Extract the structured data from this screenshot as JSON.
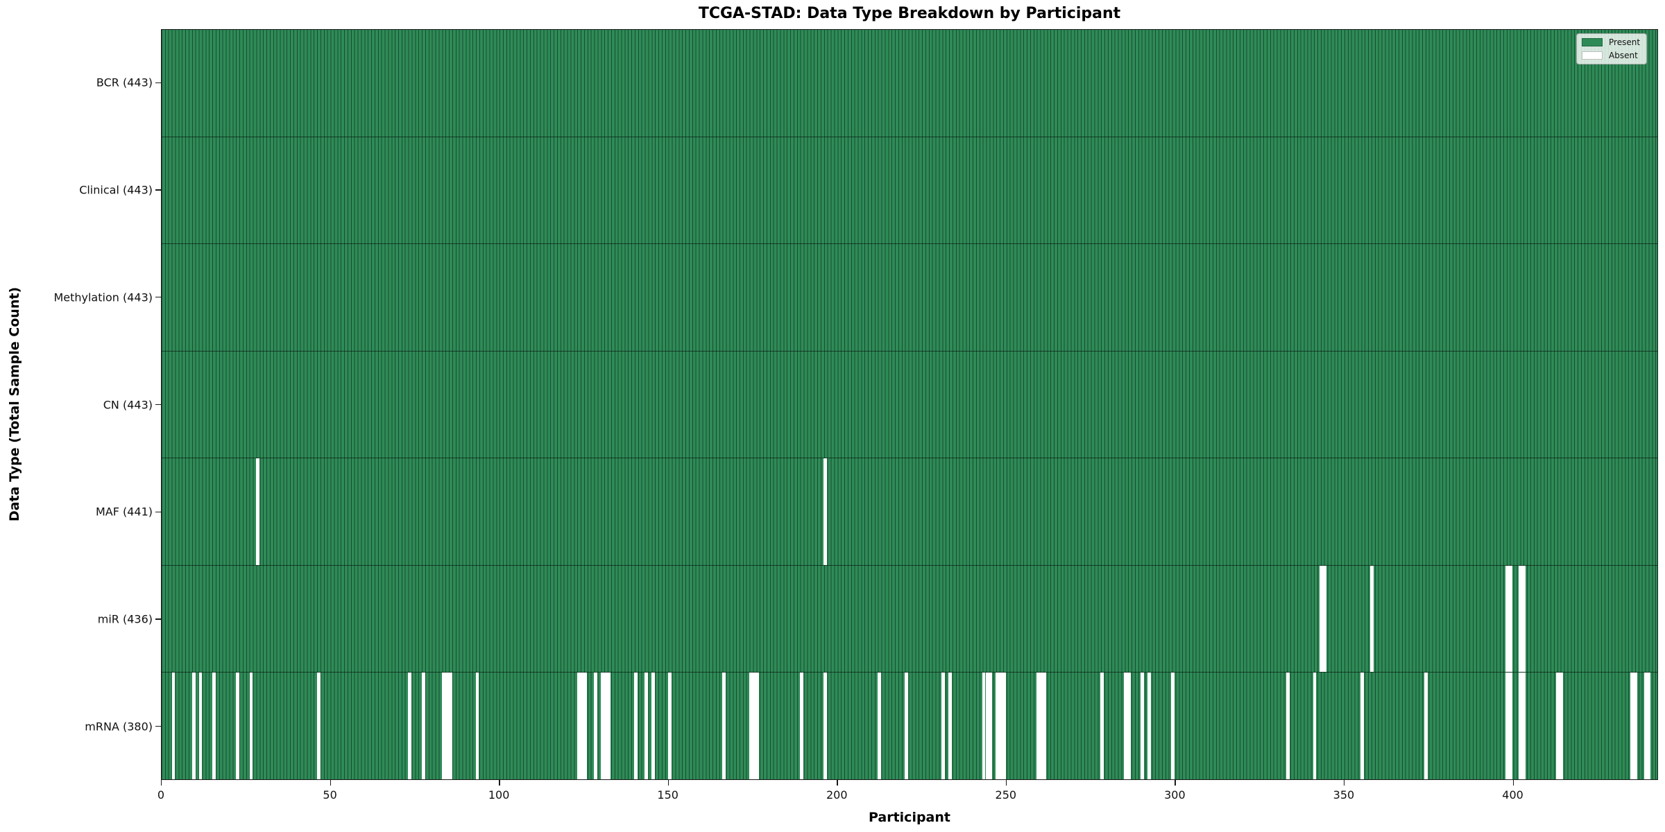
{
  "title": "TCGA-STAD: Data Type Breakdown by Participant",
  "x_axis": {
    "label": "Participant"
  },
  "y_axis": {
    "label": "Data Type (Total Sample Count)"
  },
  "legend": {
    "present_label": "Present",
    "absent_label": "Absent"
  },
  "colors": {
    "present": "#2e8b57",
    "absent": "#ffffff",
    "bar_edge": "rgba(0,0,0,0.45)",
    "spine": "#1a1a1a"
  },
  "chart_data": {
    "type": "heatmap",
    "title": "TCGA-STAD: Data Type Breakdown by Participant",
    "xlabel": "Participant",
    "ylabel": "Data Type (Total Sample Count)",
    "n_participants": 443,
    "xlim": [
      0,
      443
    ],
    "x_ticks": [
      0,
      50,
      100,
      150,
      200,
      250,
      300,
      350,
      400
    ],
    "legend_entries": [
      "Present",
      "Absent"
    ],
    "legend_position": "upper right",
    "grid": false,
    "cell_values": "binary: 1 = present (green), 0 = absent (white)",
    "rows": [
      {
        "name": "BCR",
        "label": "BCR (443)",
        "present_count": 443,
        "absent_participants": []
      },
      {
        "name": "Clinical",
        "label": "Clinical (443)",
        "present_count": 443,
        "absent_participants": []
      },
      {
        "name": "Methylation",
        "label": "Methylation (443)",
        "present_count": 443,
        "absent_participants": []
      },
      {
        "name": "CN",
        "label": "CN (443)",
        "present_count": 443,
        "absent_participants": []
      },
      {
        "name": "MAF",
        "label": "MAF (441)",
        "present_count": 441,
        "absent_participants": [
          28,
          196
        ]
      },
      {
        "name": "miR",
        "label": "miR (436)",
        "present_count": 436,
        "absent_participants": [
          343,
          344,
          358,
          398,
          399,
          402,
          403
        ]
      },
      {
        "name": "mRNA",
        "label": "mRNA (380)",
        "present_count": 380,
        "absent_participants": [
          3,
          9,
          11,
          15,
          22,
          26,
          46,
          73,
          77,
          83,
          84,
          85,
          93,
          123,
          124,
          125,
          128,
          130,
          131,
          132,
          140,
          143,
          145,
          150,
          166,
          174,
          175,
          176,
          189,
          196,
          212,
          220,
          231,
          233,
          243,
          244,
          245,
          247,
          248,
          249,
          259,
          260,
          261,
          278,
          285,
          286,
          290,
          292,
          299,
          333,
          341,
          355,
          374,
          398,
          399,
          402,
          403,
          413,
          414,
          435,
          436,
          439,
          440
        ]
      }
    ]
  }
}
